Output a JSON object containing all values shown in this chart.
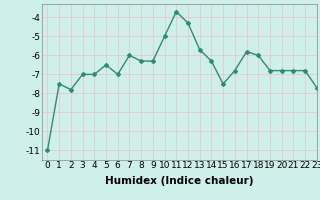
{
  "x": [
    0,
    1,
    2,
    3,
    4,
    5,
    6,
    7,
    8,
    9,
    10,
    11,
    12,
    13,
    14,
    15,
    16,
    17,
    18,
    19,
    20,
    21,
    22,
    23
  ],
  "y": [
    -11.0,
    -7.5,
    -7.8,
    -7.0,
    -7.0,
    -6.5,
    -7.0,
    -6.0,
    -6.3,
    -6.3,
    -5.0,
    -3.7,
    -4.3,
    -5.7,
    -6.3,
    -7.5,
    -6.8,
    -5.8,
    -6.0,
    -6.8,
    -6.8,
    -6.8,
    -6.8,
    -7.7
  ],
  "line_color": "#2e8b74",
  "marker": "D",
  "marker_size": 2.0,
  "line_width": 1.0,
  "xlabel": "Humidex (Indice chaleur)",
  "xlim": [
    -0.5,
    23
  ],
  "ylim": [
    -11.5,
    -3.3
  ],
  "yticks": [
    -11,
    -10,
    -9,
    -8,
    -7,
    -6,
    -5,
    -4
  ],
  "xticks": [
    0,
    1,
    2,
    3,
    4,
    5,
    6,
    7,
    8,
    9,
    10,
    11,
    12,
    13,
    14,
    15,
    16,
    17,
    18,
    19,
    20,
    21,
    22,
    23
  ],
  "bg_color": "#cff0ea",
  "grid_color": "#e8c8c8",
  "tick_label_fontsize": 6.5,
  "xlabel_fontsize": 7.5
}
